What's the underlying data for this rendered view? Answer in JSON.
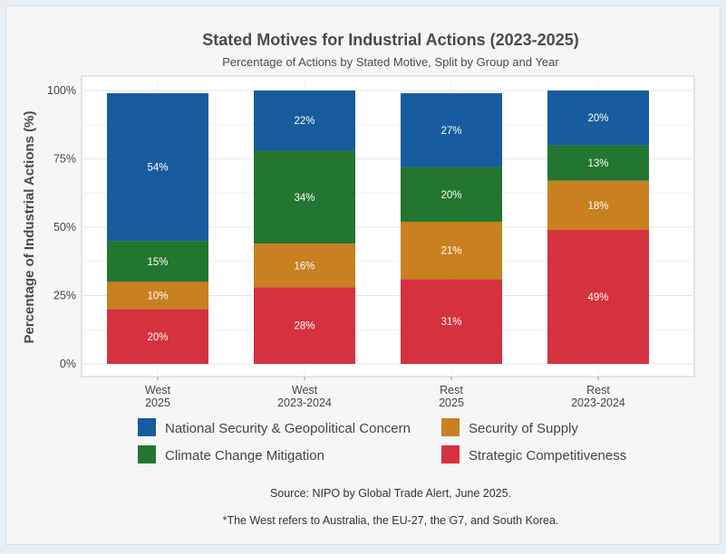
{
  "chart_data": {
    "type": "bar",
    "stacked": true,
    "title": "Stated Motives for Industrial Actions (2023-2025)",
    "subtitle": "Percentage of Actions by Stated Motive, Split by Group and Year",
    "xlabel": "",
    "ylabel": "Percentage of Industrial Actions (%)",
    "ylim": [
      0,
      100
    ],
    "yticks": [
      "0%",
      "25%",
      "50%",
      "75%",
      "100%"
    ],
    "categories": [
      [
        "West",
        "2025"
      ],
      [
        "West",
        "2023-2024"
      ],
      [
        "Rest",
        "2025"
      ],
      [
        "Rest",
        "2023-2024"
      ]
    ],
    "series": [
      {
        "name": "Strategic Competitiveness",
        "color": "#d5313f",
        "values": [
          20,
          28,
          31,
          49
        ],
        "labels": [
          "20%",
          "28%",
          "31%",
          "49%"
        ]
      },
      {
        "name": "Security of Supply",
        "color": "#c88021",
        "values": [
          10,
          16,
          21,
          18
        ],
        "labels": [
          "10%",
          "16%",
          "21%",
          "18%"
        ]
      },
      {
        "name": "Climate Change Mitigation",
        "color": "#22762f",
        "values": [
          15,
          34,
          20,
          13
        ],
        "labels": [
          "15%",
          "34%",
          "20%",
          "13%"
        ]
      },
      {
        "name": "National Security & Geopolitical Concern",
        "color": "#165c9e",
        "values": [
          54,
          22,
          27,
          20
        ],
        "labels": [
          "54%",
          "22%",
          "27%",
          "20%"
        ]
      }
    ],
    "legend": {
      "placement": "bottom",
      "order": [
        "National Security & Geopolitical Concern",
        "Security of Supply",
        "Climate Change Mitigation",
        "Strategic Competitiveness"
      ]
    },
    "grid": true
  },
  "captions": {
    "source": "Source: NIPO by Global Trade Alert, June 2025.",
    "note": "*The West refers to Australia, the EU-27, the G7, and South Korea."
  }
}
